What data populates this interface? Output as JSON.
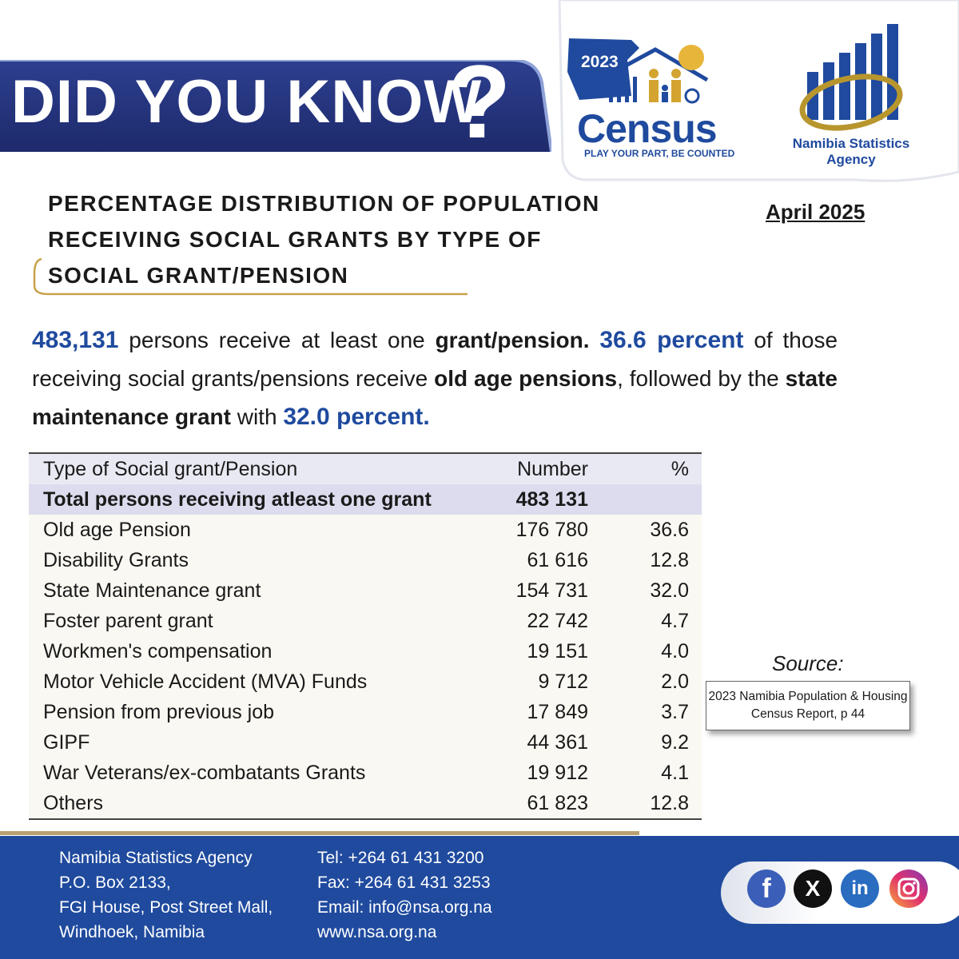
{
  "header": {
    "banner": "DID YOU KNOW",
    "question_mark": "?"
  },
  "census_logo": {
    "year": "2023",
    "name": "Census",
    "slogan": "PLAY YOUR PART, BE COUNTED"
  },
  "agency_logo": {
    "name": "Namibia Statistics Agency"
  },
  "title": "PERCENTAGE DISTRIBUTION OF POPULATION RECEIVING SOCIAL GRANTS BY TYPE OF SOCIAL GRANT/PENSION",
  "date": "April 2025",
  "intro": [
    "483,131",
    "persons receive at least one",
    "grant/pension.",
    "36.6 percent",
    "of those receiving social grants/pensions receive",
    "old age pensions",
    ", followed by the",
    "state maintenance grant",
    "with",
    "32.0 percent."
  ],
  "table": {
    "columns": [
      "Type of Social grant/Pension",
      "Number",
      "%"
    ],
    "rows": [
      [
        "Total persons receiving atleast one grant",
        "483 131"
      ],
      [
        "Old age Pension",
        "176 780",
        "36.6"
      ],
      [
        "Disability Grants",
        "61 616",
        "12.8"
      ],
      [
        "State Maintenance grant",
        "154 731",
        "32.0"
      ],
      [
        "Foster parent grant",
        "22 742",
        "4.7"
      ],
      [
        "Workmen's compensation",
        "19 151",
        "4.0"
      ],
      [
        "Motor Vehicle Accident (MVA) Funds",
        "9 712",
        "2.0"
      ],
      [
        "Pension from previous job",
        "17 849",
        "3.7"
      ],
      [
        "GIPF",
        "44 361",
        "9.2"
      ],
      [
        "War Veterans/ex-combatants Grants",
        "19 912",
        "4.1"
      ],
      [
        "Others",
        "61 823",
        "12.8"
      ]
    ]
  },
  "source": {
    "label": "Source:",
    "text": "2023 Namibia Population & Housing Census Report, p 44"
  },
  "footer": {
    "address": [
      "Namibia Statistics Agency",
      "P.O. Box 2133,",
      "FGI House, Post Street Mall,",
      "Windhoek, Namibia"
    ],
    "contact": [
      "Tel: +264 61 431 3200",
      "Fax: +264 61 431 3253",
      "Email:  info@nsa.org.na",
      "www.nsa.org.na"
    ]
  },
  "social": [
    "f",
    "X",
    "in"
  ]
}
